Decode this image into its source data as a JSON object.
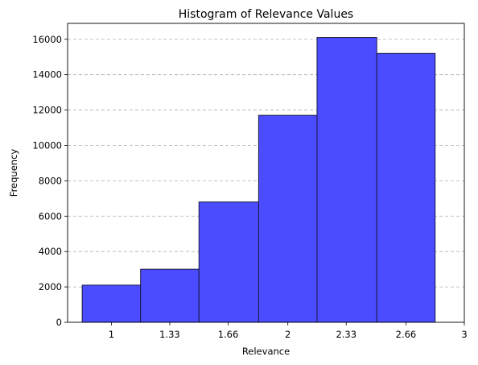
{
  "chart_data": {
    "type": "bar",
    "title": "Histogram of Relevance Values",
    "xlabel": "Relevance",
    "ylabel": "Frequency",
    "bins": [
      {
        "x_start": 0.78,
        "x_end": 1.22,
        "value": 2100
      },
      {
        "x_start": 1.22,
        "x_end": 1.66,
        "value": 3000
      },
      {
        "x_start": 1.66,
        "x_end": 2.11,
        "value": 6800
      },
      {
        "x_start": 2.11,
        "x_end": 2.55,
        "value": 11700
      },
      {
        "x_start": 2.55,
        "x_end": 3.0,
        "value": 16100
      },
      {
        "x_start": 3.0,
        "x_end": 3.44,
        "value": 15200
      }
    ],
    "xticks": [
      {
        "value": 1.0,
        "label": "1"
      },
      {
        "value": 1.44,
        "label": "1.33"
      },
      {
        "value": 1.88,
        "label": "1.66"
      },
      {
        "value": 2.33,
        "label": "2"
      },
      {
        "value": 2.77,
        "label": "2.33"
      },
      {
        "value": 3.22,
        "label": "2.66"
      },
      {
        "value": 3.66,
        "label": "3"
      }
    ],
    "yticks": [
      0,
      2000,
      4000,
      6000,
      8000,
      10000,
      12000,
      14000,
      16000
    ],
    "xlim": [
      0.67,
      3.66
    ],
    "ylim": [
      0,
      16900
    ],
    "grid": "y-dashed",
    "bar_color": "#4b4bff",
    "edge_color": "#1a1a40",
    "grid_color": "#b0b0b0"
  }
}
